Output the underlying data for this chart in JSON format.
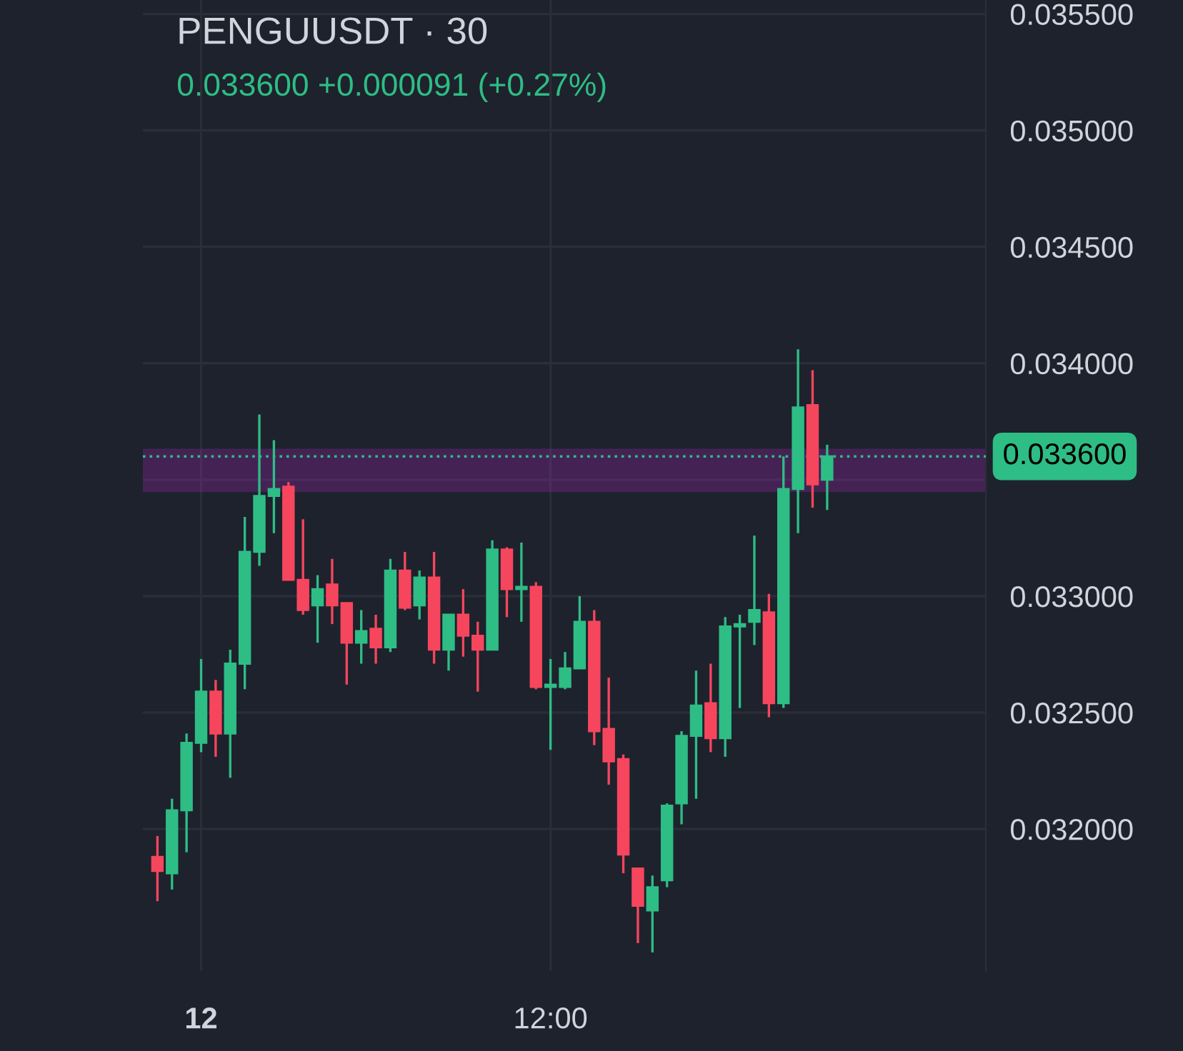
{
  "chart_data": {
    "type": "candlestick",
    "title": "PENGUUSDT · 30",
    "subtitle": "0.033600 +0.000091 (+0.27%)",
    "categories": [
      null,
      null,
      null,
      "12",
      null,
      null,
      null,
      null,
      null,
      null,
      null,
      null,
      null,
      null,
      null,
      null,
      null,
      null,
      null,
      null,
      null,
      null,
      null,
      null,
      null,
      null,
      null,
      "12:00",
      null,
      null,
      null,
      null,
      null,
      null,
      null,
      null,
      null,
      null,
      null,
      null,
      null,
      null,
      null,
      null,
      null,
      null,
      null,
      null,
      null,
      null,
      null,
      null,
      null,
      null,
      null,
      null,
      null
    ],
    "ohlc": [
      [
        0.03188,
        0.03197,
        0.03169,
        0.03182
      ],
      [
        0.03181,
        0.03213,
        0.03174,
        0.03208
      ],
      [
        0.03208,
        0.03241,
        0.0319,
        0.03237
      ],
      [
        0.03237,
        0.03273,
        0.03233,
        0.03259
      ],
      [
        0.03259,
        0.03264,
        0.03231,
        0.03241
      ],
      [
        0.03241,
        0.03277,
        0.03222,
        0.03271
      ],
      [
        0.03271,
        0.03334,
        0.0326,
        0.03319
      ],
      [
        0.03319,
        0.03378,
        0.03313,
        0.03343
      ],
      [
        0.03343,
        0.03367,
        0.03327,
        0.03346
      ],
      [
        0.03347,
        0.03349,
        0.03307,
        0.03307
      ],
      [
        0.03307,
        0.03333,
        0.03292,
        0.03294
      ],
      [
        0.03296,
        0.03309,
        0.0328,
        0.03303
      ],
      [
        0.03305,
        0.03316,
        0.03288,
        0.03296
      ],
      [
        0.03297,
        0.03297,
        0.03262,
        0.0328
      ],
      [
        0.0328,
        0.03294,
        0.03271,
        0.03285
      ],
      [
        0.03286,
        0.03292,
        0.03271,
        0.03278
      ],
      [
        0.03278,
        0.03316,
        0.03276,
        0.03311
      ],
      [
        0.03311,
        0.03319,
        0.03294,
        0.03295
      ],
      [
        0.03296,
        0.03311,
        0.0329,
        0.03308
      ],
      [
        0.03308,
        0.03319,
        0.03271,
        0.03277
      ],
      [
        0.03277,
        0.03292,
        0.03268,
        0.03292
      ],
      [
        0.03292,
        0.03303,
        0.03274,
        0.03283
      ],
      [
        0.03283,
        0.03289,
        0.03259,
        0.03277
      ],
      [
        0.03277,
        0.03324,
        0.03277,
        0.0332
      ],
      [
        0.0332,
        0.03321,
        0.03291,
        0.03303
      ],
      [
        0.03303,
        0.03323,
        0.03289,
        0.03304
      ],
      [
        0.03304,
        0.03306,
        0.0326,
        0.03261
      ],
      [
        0.03261,
        0.03273,
        0.03234,
        0.03262
      ],
      [
        0.03261,
        0.03276,
        0.0326,
        0.03269
      ],
      [
        0.03269,
        0.033,
        0.03269,
        0.03289
      ],
      [
        0.03289,
        0.03294,
        0.03236,
        0.03242
      ],
      [
        0.03243,
        0.03265,
        0.03219,
        0.03229
      ],
      [
        0.0323,
        0.03232,
        0.03181,
        0.03189
      ],
      [
        0.03183,
        0.03183,
        0.03151,
        0.03167
      ],
      [
        0.03165,
        0.0318,
        0.03147,
        0.03175
      ],
      [
        0.03178,
        0.03211,
        0.03175,
        0.0321
      ],
      [
        0.03211,
        0.03242,
        0.03202,
        0.0324
      ],
      [
        0.0324,
        0.03268,
        0.03213,
        0.03253
      ],
      [
        0.03254,
        0.03271,
        0.03233,
        0.03239
      ],
      [
        0.03239,
        0.03291,
        0.03231,
        0.03287
      ],
      [
        0.03287,
        0.03292,
        0.03252,
        0.03288
      ],
      [
        0.03289,
        0.03326,
        0.03279,
        0.03294
      ],
      [
        0.03293,
        0.03301,
        0.03248,
        0.03254
      ],
      [
        0.03254,
        0.0336,
        0.03252,
        0.03346
      ],
      [
        0.03346,
        0.03406,
        0.03327,
        0.03381
      ],
      [
        0.03382,
        0.03397,
        0.03338,
        0.03348
      ],
      [
        0.0335,
        0.03365,
        0.03337,
        0.0336
      ],
      null,
      null,
      null,
      null,
      null,
      null,
      null,
      null,
      null,
      null
    ],
    "colors": [
      "#f6465d",
      "#2ebd85",
      "#2ebd85",
      "#2ebd85",
      "#f6465d",
      "#2ebd85",
      "#2ebd85",
      "#2ebd85",
      "#2ebd85",
      "#f6465d",
      "#f6465d",
      "#2ebd85",
      "#f6465d",
      "#f6465d",
      "#2ebd85",
      "#f6465d",
      "#2ebd85",
      "#f6465d",
      "#2ebd85",
      "#f6465d",
      "#2ebd85",
      "#f6465d",
      "#f6465d",
      "#2ebd85",
      "#f6465d",
      "#2ebd85",
      "#f6465d",
      "#2ebd85",
      "#2ebd85",
      "#2ebd85",
      "#f6465d",
      "#f6465d",
      "#f6465d",
      "#f6465d",
      "#2ebd85",
      "#2ebd85",
      "#2ebd85",
      "#2ebd85",
      "#f6465d",
      "#2ebd85",
      "#2ebd85",
      "#2ebd85",
      "#f6465d",
      "#2ebd85",
      "#2ebd85",
      "#f6465d",
      "#2ebd85",
      null,
      null,
      null,
      null,
      null,
      null,
      null,
      null,
      null,
      null
    ],
    "ylim": [
      0.03139,
      0.03556
    ],
    "yticks": [
      {
        "value": 0.032,
        "label": "0.032000"
      },
      {
        "value": 0.0325,
        "label": "0.032500"
      },
      {
        "value": 0.033,
        "label": "0.033000"
      },
      {
        "value": 0.0335,
        "label": null
      },
      {
        "value": 0.034,
        "label": "0.034000"
      },
      {
        "value": 0.0345,
        "label": "0.034500"
      },
      {
        "value": 0.035,
        "label": "0.035000"
      },
      {
        "value": 0.0355,
        "label": "0.035500"
      }
    ],
    "ref_lines": [
      {
        "axis": "y",
        "value": 0.0336,
        "label": "0.033600",
        "color": "#2ebd85",
        "line_style": "dotted"
      }
    ],
    "bands": [
      {
        "axis": "y",
        "from": 0.03346,
        "to": 0.03362,
        "color": "#9c27b0"
      }
    ],
    "grid": true
  }
}
